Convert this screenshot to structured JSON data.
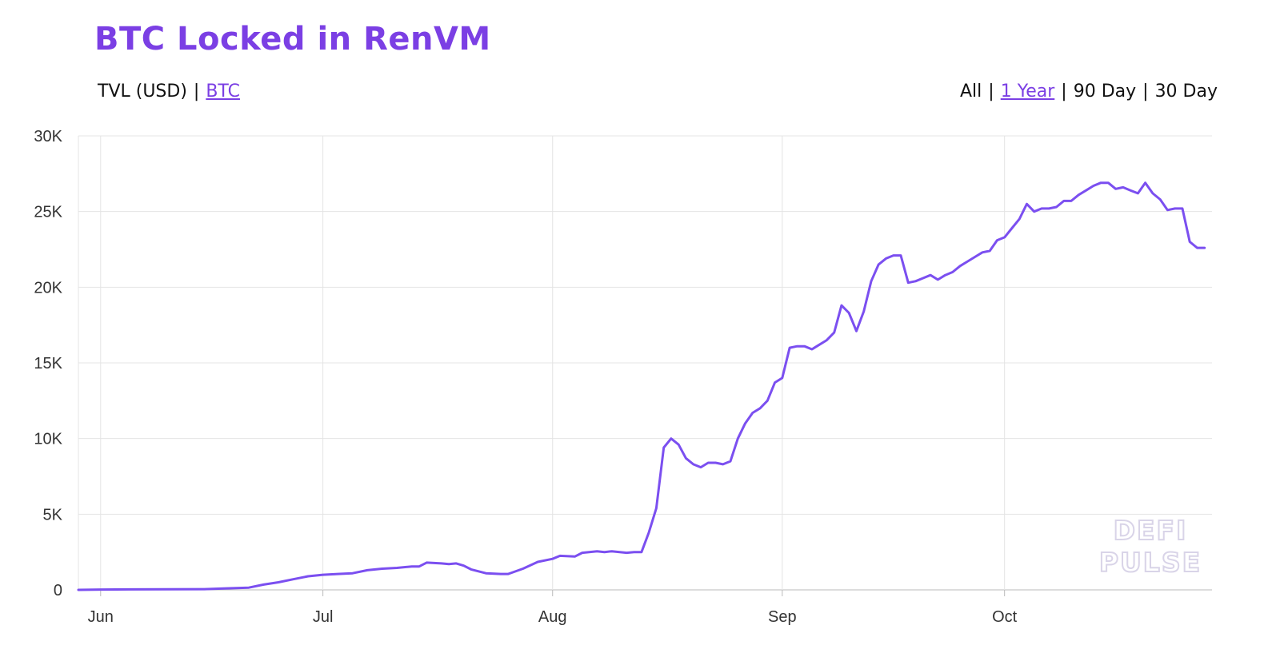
{
  "title": "BTC Locked in RenVM",
  "unit_toggle": {
    "options": [
      {
        "label": "TVL (USD)",
        "active": false
      },
      {
        "label": "BTC",
        "active": true
      }
    ],
    "separator": "|"
  },
  "range_toggle": {
    "options": [
      {
        "label": "All",
        "active": false
      },
      {
        "label": "1 Year",
        "active": true
      },
      {
        "label": "90 Day",
        "active": false
      },
      {
        "label": "30 Day",
        "active": false
      }
    ],
    "separator": "|"
  },
  "watermark": [
    "DEFI",
    "PULSE"
  ],
  "colors": {
    "accent": "#7b3fe4",
    "line": "#7b4ff0",
    "grid": "#e4e4e4",
    "axis": "#bbbbbb"
  },
  "chart_data": {
    "type": "line",
    "title": "BTC Locked in RenVM",
    "xlabel": "",
    "ylabel": "",
    "ylim": [
      0,
      30000
    ],
    "xlim": [
      "2020-05-29",
      "2020-10-29"
    ],
    "y_ticks": [
      {
        "value": 0,
        "label": "0"
      },
      {
        "value": 5000,
        "label": "5K"
      },
      {
        "value": 10000,
        "label": "10K"
      },
      {
        "value": 15000,
        "label": "15K"
      },
      {
        "value": 20000,
        "label": "20K"
      },
      {
        "value": 25000,
        "label": "25K"
      },
      {
        "value": 30000,
        "label": "30K"
      }
    ],
    "x_ticks": [
      {
        "date": "2020-06-01",
        "label": "Jun"
      },
      {
        "date": "2020-07-01",
        "label": "Jul"
      },
      {
        "date": "2020-08-01",
        "label": "Aug"
      },
      {
        "date": "2020-09-01",
        "label": "Sep"
      },
      {
        "date": "2020-10-01",
        "label": "Oct"
      }
    ],
    "grid": true,
    "legend": "none",
    "series": [
      {
        "points": [
          [
            "2020-05-29",
            0
          ],
          [
            "2020-06-01",
            20
          ],
          [
            "2020-06-05",
            30
          ],
          [
            "2020-06-10",
            40
          ],
          [
            "2020-06-15",
            50
          ],
          [
            "2020-06-18",
            100
          ],
          [
            "2020-06-21",
            150
          ],
          [
            "2020-06-23",
            350
          ],
          [
            "2020-06-25",
            500
          ],
          [
            "2020-06-27",
            700
          ],
          [
            "2020-06-29",
            900
          ],
          [
            "2020-07-01",
            1000
          ],
          [
            "2020-07-03",
            1050
          ],
          [
            "2020-07-05",
            1100
          ],
          [
            "2020-07-07",
            1300
          ],
          [
            "2020-07-09",
            1400
          ],
          [
            "2020-07-11",
            1450
          ],
          [
            "2020-07-13",
            1550
          ],
          [
            "2020-07-14",
            1550
          ],
          [
            "2020-07-15",
            1800
          ],
          [
            "2020-07-17",
            1750
          ],
          [
            "2020-07-18",
            1700
          ],
          [
            "2020-07-19",
            1750
          ],
          [
            "2020-07-20",
            1600
          ],
          [
            "2020-07-21",
            1350
          ],
          [
            "2020-07-23",
            1100
          ],
          [
            "2020-07-25",
            1050
          ],
          [
            "2020-07-26",
            1050
          ],
          [
            "2020-07-28",
            1400
          ],
          [
            "2020-07-30",
            1850
          ],
          [
            "2020-08-01",
            2050
          ],
          [
            "2020-08-02",
            2250
          ],
          [
            "2020-08-04",
            2200
          ],
          [
            "2020-08-05",
            2450
          ],
          [
            "2020-08-07",
            2550
          ],
          [
            "2020-08-08",
            2500
          ],
          [
            "2020-08-09",
            2550
          ],
          [
            "2020-08-11",
            2450
          ],
          [
            "2020-08-12",
            2500
          ],
          [
            "2020-08-13",
            2500
          ],
          [
            "2020-08-14",
            3800
          ],
          [
            "2020-08-15",
            5400
          ],
          [
            "2020-08-16",
            9400
          ],
          [
            "2020-08-17",
            10000
          ],
          [
            "2020-08-18",
            9600
          ],
          [
            "2020-08-19",
            8700
          ],
          [
            "2020-08-20",
            8300
          ],
          [
            "2020-08-21",
            8100
          ],
          [
            "2020-08-22",
            8400
          ],
          [
            "2020-08-23",
            8400
          ],
          [
            "2020-08-24",
            8300
          ],
          [
            "2020-08-25",
            8500
          ],
          [
            "2020-08-26",
            10000
          ],
          [
            "2020-08-27",
            11000
          ],
          [
            "2020-08-28",
            11700
          ],
          [
            "2020-08-29",
            12000
          ],
          [
            "2020-08-30",
            12500
          ],
          [
            "2020-08-31",
            13700
          ],
          [
            "2020-09-01",
            14000
          ],
          [
            "2020-09-02",
            16000
          ],
          [
            "2020-09-03",
            16100
          ],
          [
            "2020-09-04",
            16100
          ],
          [
            "2020-09-05",
            15900
          ],
          [
            "2020-09-06",
            16200
          ],
          [
            "2020-09-07",
            16500
          ],
          [
            "2020-09-08",
            17000
          ],
          [
            "2020-09-09",
            18800
          ],
          [
            "2020-09-10",
            18300
          ],
          [
            "2020-09-11",
            17100
          ],
          [
            "2020-09-12",
            18400
          ],
          [
            "2020-09-13",
            20400
          ],
          [
            "2020-09-14",
            21500
          ],
          [
            "2020-09-15",
            21900
          ],
          [
            "2020-09-16",
            22100
          ],
          [
            "2020-09-17",
            22100
          ],
          [
            "2020-09-18",
            20300
          ],
          [
            "2020-09-19",
            20400
          ],
          [
            "2020-09-20",
            20600
          ],
          [
            "2020-09-21",
            20800
          ],
          [
            "2020-09-22",
            20500
          ],
          [
            "2020-09-23",
            20800
          ],
          [
            "2020-09-24",
            21000
          ],
          [
            "2020-09-25",
            21400
          ],
          [
            "2020-09-26",
            21700
          ],
          [
            "2020-09-27",
            22000
          ],
          [
            "2020-09-28",
            22300
          ],
          [
            "2020-09-29",
            22400
          ],
          [
            "2020-09-30",
            23100
          ],
          [
            "2020-10-01",
            23300
          ],
          [
            "2020-10-02",
            23900
          ],
          [
            "2020-10-03",
            24500
          ],
          [
            "2020-10-04",
            25500
          ],
          [
            "2020-10-05",
            25000
          ],
          [
            "2020-10-06",
            25200
          ],
          [
            "2020-10-07",
            25200
          ],
          [
            "2020-10-08",
            25300
          ],
          [
            "2020-10-09",
            25700
          ],
          [
            "2020-10-10",
            25700
          ],
          [
            "2020-10-11",
            26100
          ],
          [
            "2020-10-12",
            26400
          ],
          [
            "2020-10-13",
            26700
          ],
          [
            "2020-10-14",
            26900
          ],
          [
            "2020-10-15",
            26900
          ],
          [
            "2020-10-16",
            26500
          ],
          [
            "2020-10-17",
            26600
          ],
          [
            "2020-10-18",
            26400
          ],
          [
            "2020-10-19",
            26200
          ],
          [
            "2020-10-20",
            26900
          ],
          [
            "2020-10-21",
            26200
          ],
          [
            "2020-10-22",
            25800
          ],
          [
            "2020-10-23",
            25100
          ],
          [
            "2020-10-24",
            25200
          ],
          [
            "2020-10-25",
            25200
          ],
          [
            "2020-10-26",
            23000
          ],
          [
            "2020-10-27",
            22600
          ],
          [
            "2020-10-28",
            22600
          ]
        ]
      }
    ]
  }
}
